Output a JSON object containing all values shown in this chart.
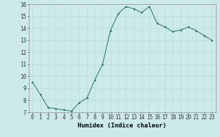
{
  "x": [
    0,
    1,
    2,
    3,
    4,
    5,
    6,
    7,
    8,
    9,
    10,
    11,
    12,
    13,
    14,
    15,
    16,
    17,
    18,
    19,
    20,
    21,
    22,
    23
  ],
  "y": [
    9.5,
    8.5,
    7.4,
    7.3,
    7.2,
    7.1,
    7.8,
    8.2,
    9.7,
    11.0,
    13.8,
    15.2,
    15.8,
    15.6,
    15.3,
    15.8,
    14.4,
    14.1,
    13.7,
    13.85,
    14.1,
    13.8,
    13.4,
    13.0
  ],
  "line_color": "#2e7d6e",
  "marker": "D",
  "marker_size": 1.5,
  "bg_color": "#cdeaea",
  "grid_color": "#b0d8d8",
  "xlabel": "Humidex (Indice chaleur)",
  "ylim": [
    7,
    16
  ],
  "xlim": [
    -0.5,
    23.5
  ],
  "yticks": [
    7,
    8,
    9,
    10,
    11,
    12,
    13,
    14,
    15,
    16
  ],
  "xtick_labels": [
    "0",
    "1",
    "2",
    "3",
    "4",
    "5",
    "6",
    "7",
    "8",
    "9",
    "10",
    "11",
    "12",
    "13",
    "14",
    "15",
    "16",
    "17",
    "18",
    "19",
    "20",
    "21",
    "22",
    "23"
  ],
  "label_fontsize": 6.5,
  "tick_fontsize": 5.5,
  "line_width": 0.8,
  "spine_color": "#888888"
}
